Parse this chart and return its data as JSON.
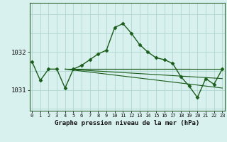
{
  "title": "Graphe pression niveau de la mer (hPa)",
  "bg_color": "#d8f0ee",
  "grid_color": "#b0d8d0",
  "line_color": "#1a5c1a",
  "x_values": [
    0,
    1,
    2,
    3,
    4,
    5,
    6,
    7,
    8,
    9,
    10,
    11,
    12,
    13,
    14,
    15,
    16,
    17,
    18,
    19,
    20,
    21,
    22,
    23
  ],
  "y_main": [
    1031.75,
    1031.25,
    1031.55,
    1031.55,
    1031.05,
    1031.55,
    1031.65,
    1031.8,
    1031.95,
    1032.05,
    1032.65,
    1032.75,
    1032.5,
    1032.2,
    1032.0,
    1031.85,
    1031.8,
    1031.7,
    1031.35,
    1031.1,
    1030.8,
    1031.3,
    1031.15,
    1031.55
  ],
  "trend_lines": [
    {
      "x": [
        4,
        19
      ],
      "y": [
        1031.55,
        1031.55
      ]
    },
    {
      "x": [
        4,
        23
      ],
      "y": [
        1031.55,
        1031.55
      ]
    },
    {
      "x": [
        4,
        23
      ],
      "y": [
        1031.55,
        1031.3
      ]
    },
    {
      "x": [
        4,
        23
      ],
      "y": [
        1031.55,
        1031.05
      ]
    }
  ],
  "ytick_positions": [
    1031.0,
    1032.0
  ],
  "ytick_labels": [
    "1031",
    "1032"
  ],
  "ylim": [
    1030.45,
    1033.3
  ],
  "xlim": [
    -0.3,
    23.3
  ],
  "marker": "D",
  "markersize": 2.5
}
